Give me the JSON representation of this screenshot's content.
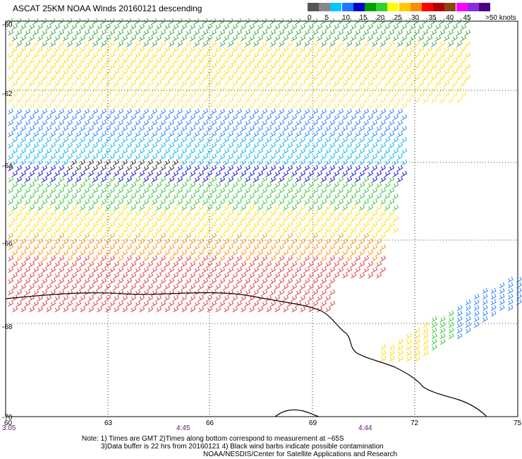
{
  "title": "ASCAT 25KM NOAA Winds 20160121 descending",
  "scale": {
    "labels": [
      "0",
      "5",
      "10",
      "15",
      "20",
      "25",
      "30",
      "35",
      "40",
      "45",
      ">50 knots"
    ],
    "colors": [
      "#555555",
      "#888888",
      "#00c8ff",
      "#1e78ff",
      "#0000d0",
      "#00a000",
      "#30d030",
      "#ffff00",
      "#ffc800",
      "#ff8c00",
      "#ff0000",
      "#b40000",
      "#8b4513",
      "#ff00ff",
      "#8a2be2",
      "#4b0082"
    ]
  },
  "lat_labels": [
    "-60",
    "-62",
    "-64",
    "-66",
    "-68",
    "-70"
  ],
  "lon_labels": [
    "60",
    "63",
    "66",
    "69",
    "72",
    "75"
  ],
  "times": [
    "3:05",
    "4:45",
    "4:44"
  ],
  "notes": [
    "Note: 1) Times are GMT 2)Times along bottom correspond to measurement at ~65S",
    "3)Data buffer is 22 hrs from 20160121 4) Black wind barbs indicate possible contamination",
    "NOAA/NESDIS/Center for Satellite Applications and Research"
  ]
}
